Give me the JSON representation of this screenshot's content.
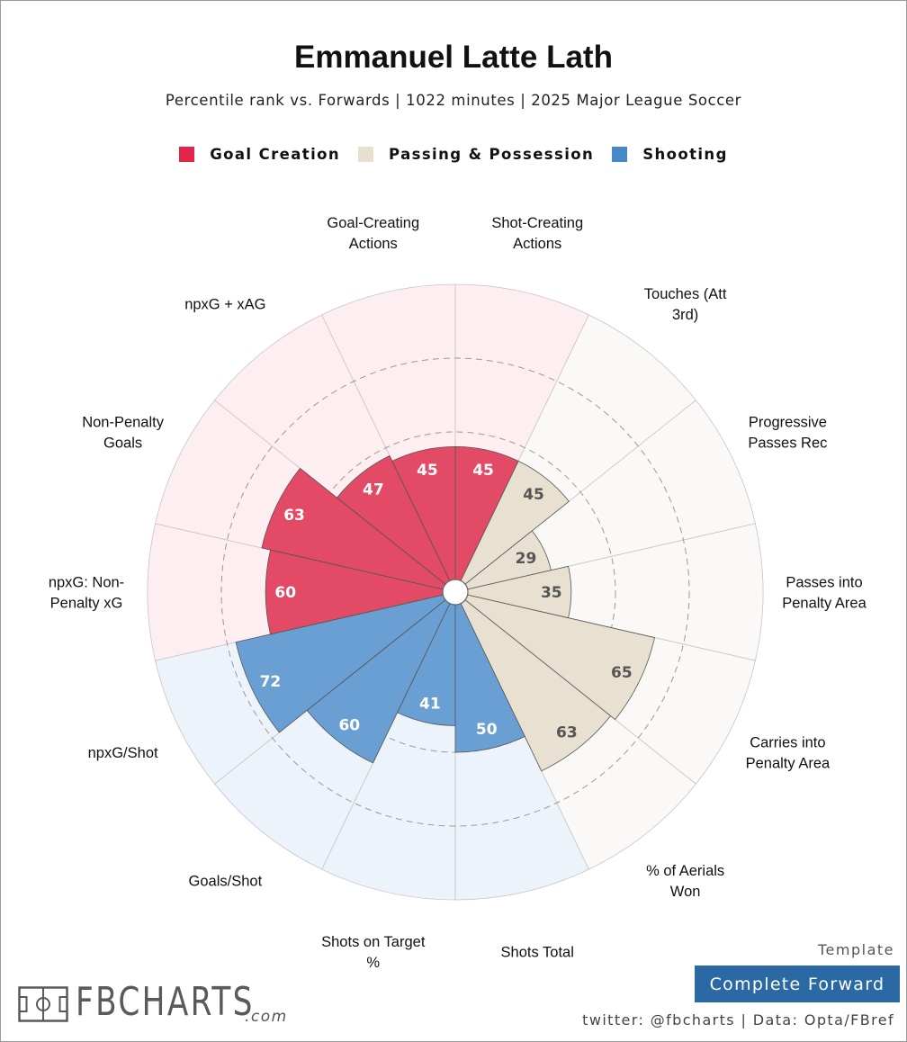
{
  "title": "Emmanuel Latte Lath",
  "subtitle": "Percentile rank vs. Forwards | 1022 minutes | 2025 Major League Soccer",
  "legend": [
    {
      "label": "Goal Creation",
      "color": "#e0264a"
    },
    {
      "label": "Passing & Possession",
      "color": "#e8dfcf"
    },
    {
      "label": "Shooting",
      "color": "#4688c8"
    }
  ],
  "chart_data": {
    "type": "radar-bar",
    "range": [
      0,
      100
    ],
    "categories": [
      {
        "name": "Goal Creation",
        "fill": "#e24a66",
        "bg": "#fdeef1",
        "text": "#ffffff"
      },
      {
        "name": "Passing & Possession",
        "fill": "#e8e0d0",
        "bg": "#faf9f7",
        "text": "#555555"
      },
      {
        "name": "Shooting",
        "fill": "#6a9fd3",
        "bg": "#edf3fa",
        "text": "#ffffff"
      }
    ],
    "metrics": [
      {
        "label": "Shot-Creating Actions",
        "lines": [
          "Shot-Creating",
          "Actions"
        ],
        "value": 45,
        "category": 0
      },
      {
        "label": "Touches (Att 3rd)",
        "lines": [
          "Touches (Att",
          "3rd)"
        ],
        "value": 45,
        "category": 1
      },
      {
        "label": "Progressive Passes Rec",
        "lines": [
          "Progressive",
          "Passes Rec"
        ],
        "value": 29,
        "category": 1
      },
      {
        "label": "Passes into Penalty Area",
        "lines": [
          "Passes into",
          "Penalty Area"
        ],
        "value": 35,
        "category": 1
      },
      {
        "label": "Carries into Penalty Area",
        "lines": [
          "Carries into",
          "Penalty Area"
        ],
        "value": 65,
        "category": 1
      },
      {
        "label": "% of Aerials Won",
        "lines": [
          "% of Aerials",
          "Won"
        ],
        "value": 63,
        "category": 1
      },
      {
        "label": "Shots Total",
        "lines": [
          "Shots Total"
        ],
        "value": 50,
        "category": 2
      },
      {
        "label": "Shots on Target %",
        "lines": [
          "Shots on Target",
          "%"
        ],
        "value": 41,
        "category": 2
      },
      {
        "label": "Goals/Shot",
        "lines": [
          "Goals/Shot"
        ],
        "value": 60,
        "category": 2
      },
      {
        "label": "npxG/Shot",
        "lines": [
          "npxG/Shot"
        ],
        "value": 72,
        "category": 2
      },
      {
        "label": "npxG: Non-Penalty xG",
        "lines": [
          "npxG: Non-",
          "Penalty xG"
        ],
        "value": 60,
        "category": 0
      },
      {
        "label": "Non-Penalty Goals",
        "lines": [
          "Non-Penalty",
          "Goals"
        ],
        "value": 63,
        "category": 0
      },
      {
        "label": "npxG + xAG",
        "lines": [
          "npxG + xAG"
        ],
        "value": 47,
        "category": 0
      },
      {
        "label": "Goal-Creating Actions",
        "lines": [
          "Goal-Creating",
          "Actions"
        ],
        "value": 45,
        "category": 0
      }
    ],
    "gridlines": [
      25,
      50,
      75
    ]
  },
  "footer": {
    "logo_text": "FBCHARTS",
    "logo_suffix": ".com",
    "template_label": "Template",
    "template_name": "Complete Forward",
    "credits": "twitter: @fbcharts | Data: Opta/FBref"
  }
}
